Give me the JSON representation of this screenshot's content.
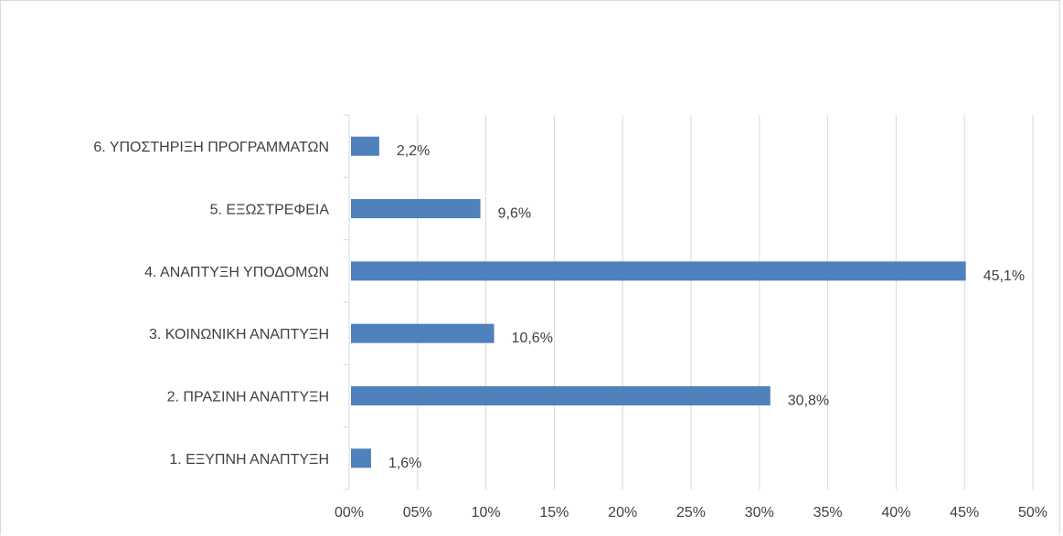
{
  "chart_data": {
    "type": "bar",
    "orientation": "horizontal",
    "title": "",
    "xlabel": "",
    "ylabel": "",
    "categories": [
      "6. ΥΠΟΣΤΗΡΙΞΗ ΠΡΟΓΡΑΜΜΑΤΩΝ",
      "5. ΕΞΩΣΤΡΕΦΕΙΑ",
      "4. ΑΝΑΠΤΥΞΗ ΥΠΟΔΟΜΩΝ",
      "3. ΚΟΙΝΩΝΙΚΗ ΑΝΑΠΤΥΞΗ",
      "2. ΠΡΑΣΙΝΗ ΑΝΑΠΤΥΞΗ",
      "1. ΕΞΥΠΝΗ ΑΝΑΠΤΥΞΗ"
    ],
    "values": [
      2.2,
      9.6,
      45.1,
      10.6,
      30.8,
      1.6
    ],
    "data_labels": [
      "2,2%",
      "9,6%",
      "45,1%",
      "10,6%",
      "30,8%",
      "1,6%"
    ],
    "xlim": [
      0,
      50
    ],
    "x_ticks": [
      "00%",
      "05%",
      "10%",
      "15%",
      "20%",
      "25%",
      "30%",
      "35%",
      "40%",
      "45%",
      "50%"
    ],
    "grid": true,
    "legend": "none",
    "colors": {
      "bar": "#4f81bd",
      "grid": "#d9d9d9",
      "text": "#404040"
    }
  }
}
